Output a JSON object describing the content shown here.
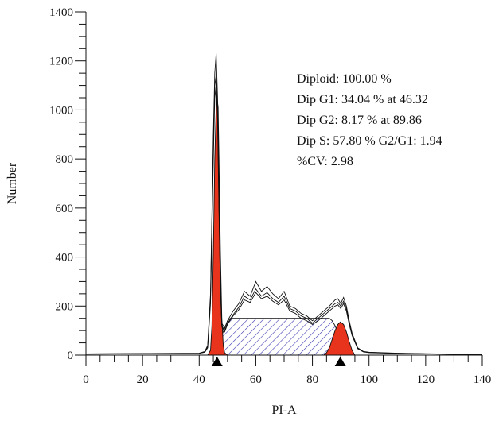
{
  "chart_data": {
    "type": "line",
    "title": "",
    "xlabel": "PI-A",
    "ylabel": "Number",
    "xlim": [
      0,
      140
    ],
    "ylim": [
      0,
      1400
    ],
    "x_major_ticks": [
      0,
      20,
      40,
      60,
      80,
      100,
      120,
      140
    ],
    "x_tick_labels": [
      "0",
      "20",
      "40",
      "60",
      "80",
      "100",
      "120",
      "140"
    ],
    "y_major_ticks": [
      0,
      200,
      400,
      600,
      800,
      1000,
      1200,
      1400
    ],
    "y_tick_labels": [
      "0",
      "200",
      "400",
      "600",
      "800",
      "1000",
      "1200",
      "1400"
    ],
    "grid": false,
    "legend": "none",
    "annotations": [
      "Diploid: 100.00 %",
      "Dip G1: 34.04 % at 46.32",
      "Dip G2: 8.17 % at 89.86",
      "Dip S: 57.80 % G2/G1: 1.94",
      "%CV: 2.98"
    ],
    "markers": [
      {
        "x": 46.32,
        "shape": "triangle",
        "color": "#000000"
      },
      {
        "x": 89.86,
        "shape": "triangle",
        "color": "#000000"
      }
    ],
    "colors": {
      "g1_fill": "#e8341c",
      "g2_fill": "#e8341c",
      "s_phase_hatch": "#3a3ab0",
      "histogram_line": "#111111"
    },
    "series": [
      {
        "role": "histogram",
        "x": [
          0,
          40,
          42,
          43,
          44,
          45,
          45.5,
          46,
          46.5,
          47,
          47.5,
          48,
          49,
          50,
          52,
          54,
          56,
          58,
          60,
          62,
          64,
          66,
          68,
          70,
          72,
          74,
          76,
          78,
          80,
          82,
          84,
          86,
          88,
          89,
          90,
          91,
          92,
          93,
          94,
          96,
          98,
          100,
          110,
          120,
          130,
          140
        ],
        "y": [
          5,
          8,
          15,
          40,
          250,
          900,
          1150,
          1230,
          1050,
          650,
          300,
          130,
          110,
          140,
          180,
          210,
          260,
          240,
          300,
          260,
          280,
          250,
          230,
          260,
          200,
          190,
          170,
          160,
          140,
          160,
          180,
          200,
          225,
          230,
          210,
          235,
          200,
          140,
          90,
          30,
          15,
          12,
          8,
          6,
          4,
          3
        ]
      },
      {
        "role": "histogram",
        "x": [
          0,
          40,
          42,
          43,
          44,
          45,
          45.5,
          46,
          46.5,
          47,
          47.5,
          48,
          49,
          50,
          52,
          54,
          56,
          58,
          60,
          62,
          64,
          66,
          68,
          70,
          72,
          74,
          76,
          78,
          80,
          82,
          84,
          86,
          88,
          89,
          90,
          91,
          92,
          93,
          94,
          96,
          98,
          100,
          110,
          120,
          130,
          140
        ],
        "y": [
          5,
          7,
          14,
          35,
          230,
          850,
          1100,
          1140,
          990,
          610,
          280,
          120,
          100,
          130,
          165,
          195,
          240,
          225,
          270,
          240,
          255,
          230,
          215,
          240,
          190,
          180,
          160,
          150,
          130,
          150,
          170,
          190,
          210,
          215,
          200,
          220,
          190,
          130,
          85,
          28,
          14,
          11,
          7,
          5,
          4,
          3
        ]
      },
      {
        "role": "histogram",
        "x": [
          0,
          40,
          42,
          43,
          44,
          45,
          45.5,
          46,
          46.5,
          47,
          47.5,
          48,
          49,
          50,
          52,
          54,
          56,
          58,
          60,
          62,
          64,
          66,
          68,
          70,
          72,
          74,
          76,
          78,
          80,
          82,
          84,
          86,
          88,
          89,
          90,
          91,
          92,
          93,
          94,
          96,
          98,
          100,
          110,
          120,
          130,
          140
        ],
        "y": [
          4,
          7,
          12,
          30,
          210,
          800,
          1050,
          1100,
          960,
          590,
          270,
          115,
          95,
          125,
          160,
          185,
          225,
          215,
          255,
          230,
          240,
          220,
          205,
          225,
          180,
          170,
          150,
          140,
          125,
          140,
          160,
          180,
          200,
          205,
          190,
          210,
          180,
          125,
          80,
          26,
          13,
          10,
          7,
          5,
          3,
          3
        ]
      },
      {
        "name": "Dip G1",
        "role": "g1_peak",
        "x": [
          43,
          44,
          44.5,
          45,
          45.5,
          46,
          46.32,
          46.7,
          47,
          47.5,
          48,
          48.5,
          49,
          50
        ],
        "y": [
          0,
          20,
          120,
          420,
          800,
          1010,
          1050,
          1010,
          800,
          420,
          150,
          40,
          10,
          0
        ]
      },
      {
        "name": "Dip S",
        "role": "s_phase",
        "x": [
          45,
          46,
          48,
          50,
          51,
          60,
          70,
          80,
          86,
          87,
          88,
          89,
          90,
          91,
          92,
          94
        ],
        "y": [
          0,
          20,
          80,
          140,
          150,
          150,
          150,
          150,
          150,
          140,
          120,
          90,
          60,
          30,
          10,
          0
        ]
      },
      {
        "name": "Dip G2",
        "role": "g2_peak",
        "x": [
          84,
          85,
          86,
          87,
          88,
          89,
          89.86,
          91,
          92,
          93,
          94,
          95
        ],
        "y": [
          0,
          10,
          30,
          65,
          100,
          125,
          135,
          125,
          95,
          55,
          20,
          0
        ]
      }
    ]
  }
}
